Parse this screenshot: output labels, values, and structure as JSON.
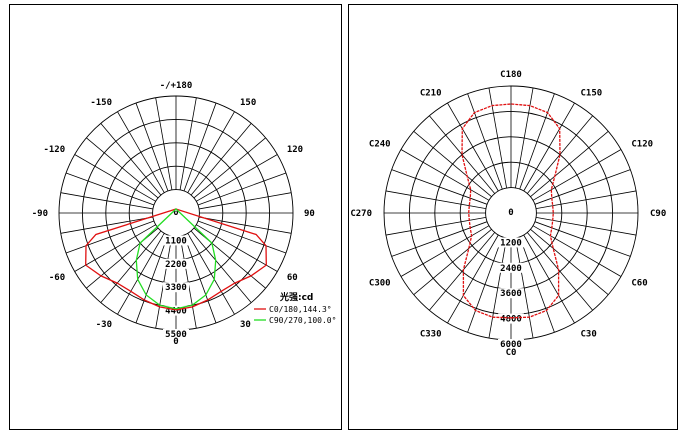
{
  "chart_data": [
    {
      "type": "polar",
      "unit_label": "光强:cd",
      "angle_labels": [
        "0",
        "30",
        "60",
        "90",
        "-/+180",
        "150",
        "120",
        "-150",
        "-120",
        "-90",
        "-60",
        "-30"
      ],
      "angle_label_degrees": [
        180,
        150,
        120,
        90,
        0,
        30,
        60,
        -30,
        -60,
        -90,
        -120,
        -150
      ],
      "radial_labels": [
        "0",
        "1100",
        "2200",
        "3300",
        "4400",
        "5500"
      ],
      "rmax": 5500,
      "series": [
        {
          "name": "C0/180,144.3°",
          "color": "#e01010",
          "points": [
            [
              -75,
              3900
            ],
            [
              -70,
              4500
            ],
            [
              -60,
              4900
            ],
            [
              -50,
              4600
            ],
            [
              -40,
              4300
            ],
            [
              -30,
              4250
            ],
            [
              -20,
              4350
            ],
            [
              -10,
              4480
            ],
            [
              0,
              4550
            ],
            [
              10,
              4480
            ],
            [
              20,
              4350
            ],
            [
              30,
              4250
            ],
            [
              40,
              4300
            ],
            [
              50,
              4600
            ],
            [
              60,
              4900
            ],
            [
              70,
              4500
            ],
            [
              75,
              3900
            ]
          ]
        },
        {
          "name": "C90/270,100.0°",
          "color": "#22dd22",
          "points": [
            [
              -50,
              2200
            ],
            [
              -40,
              2900
            ],
            [
              -30,
              3600
            ],
            [
              -20,
              4100
            ],
            [
              -10,
              4400
            ],
            [
              0,
              4500
            ],
            [
              10,
              4400
            ],
            [
              20,
              4100
            ],
            [
              30,
              3600
            ],
            [
              40,
              2900
            ],
            [
              50,
              2200
            ]
          ]
        }
      ]
    },
    {
      "type": "polar",
      "angle_labels": [
        "C0",
        "C30",
        "C60",
        "C90",
        "C120",
        "C150",
        "C180",
        "C210",
        "C240",
        "C270",
        "C300",
        "C330"
      ],
      "angle_label_degrees": [
        180,
        150,
        120,
        90,
        60,
        30,
        0,
        -30,
        -60,
        -90,
        -120,
        -150
      ],
      "radial_labels": [
        "0",
        "1200",
        "2400",
        "3600",
        "4800",
        "6000"
      ],
      "rmax": 6000,
      "series": [
        {
          "name": "",
          "color": "#e01010",
          "points": [
            [
              0,
              4950
            ],
            [
              10,
              5000
            ],
            [
              20,
              4900
            ],
            [
              30,
              4500
            ],
            [
              40,
              3500
            ],
            [
              50,
              2600
            ],
            [
              60,
              2150
            ],
            [
              70,
              2050
            ],
            [
              80,
              2000
            ],
            [
              90,
              2000
            ],
            [
              100,
              2000
            ],
            [
              110,
              2050
            ],
            [
              120,
              2200
            ],
            [
              130,
              2700
            ],
            [
              140,
              3600
            ],
            [
              150,
              4600
            ],
            [
              160,
              5050
            ],
            [
              170,
              5150
            ],
            [
              180,
              5150
            ],
            [
              190,
              5150
            ],
            [
              200,
              5050
            ],
            [
              210,
              4600
            ],
            [
              220,
              3600
            ],
            [
              230,
              2700
            ],
            [
              240,
              2200
            ],
            [
              250,
              2050
            ],
            [
              260,
              2000
            ],
            [
              270,
              2000
            ],
            [
              280,
              2000
            ],
            [
              290,
              2050
            ],
            [
              300,
              2150
            ],
            [
              310,
              2600
            ],
            [
              320,
              3500
            ],
            [
              330,
              4500
            ],
            [
              340,
              4900
            ],
            [
              350,
              5000
            ]
          ]
        }
      ]
    }
  ]
}
